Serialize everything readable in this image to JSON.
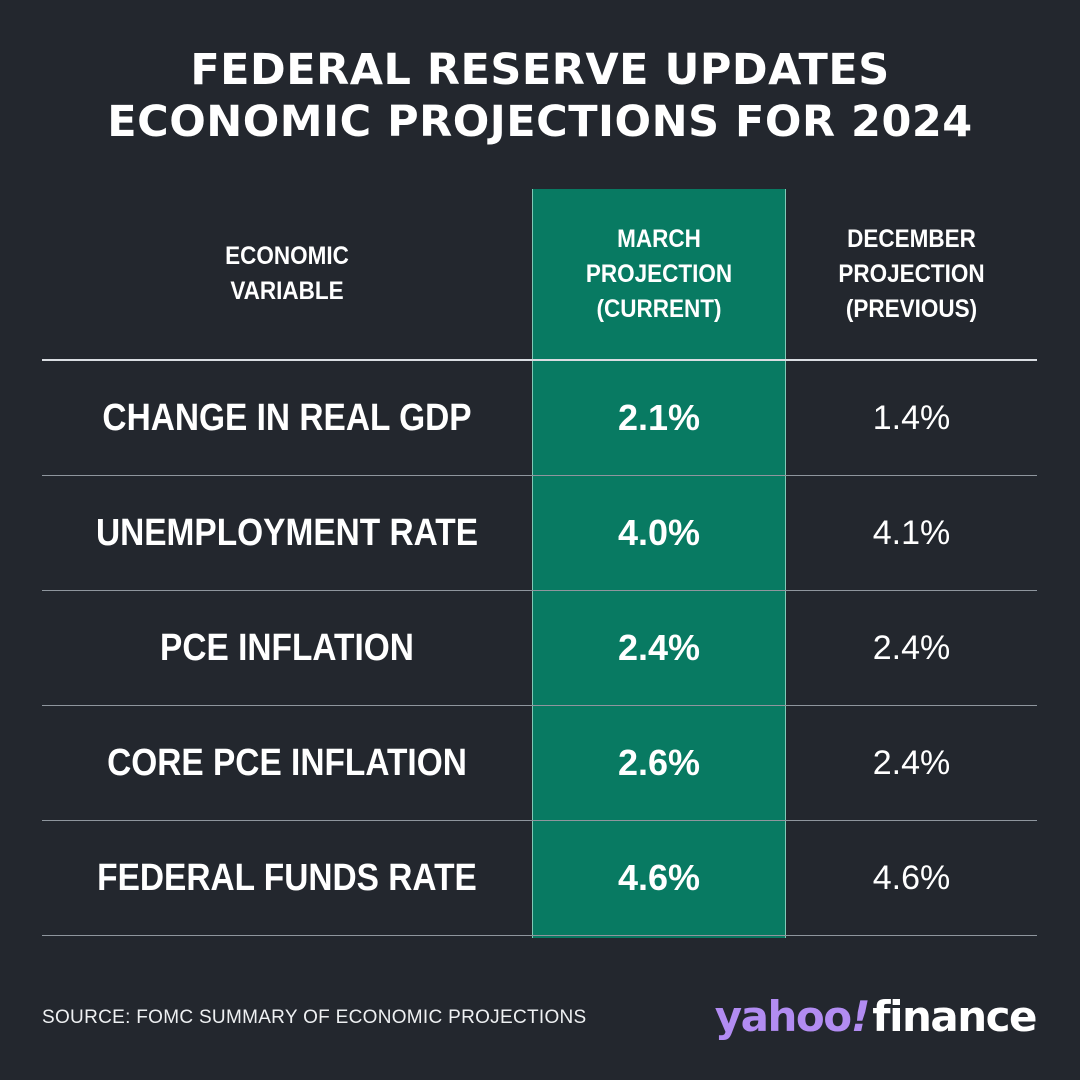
{
  "title": {
    "line1": "FEDERAL RESERVE UPDATES",
    "line2": "ECONOMIC PROJECTIONS FOR 2024"
  },
  "colors": {
    "background": "#23272e",
    "highlight": "#087a62",
    "text": "#ffffff",
    "logo_accent": "#b28cf2"
  },
  "chart_data": {
    "type": "table",
    "title": "FEDERAL RESERVE UPDATES ECONOMIC PROJECTIONS FOR 2024",
    "columns": [
      [
        "ECONOMIC",
        "VARIABLE"
      ],
      [
        "MARCH",
        "PROJECTION",
        "(CURRENT)"
      ],
      [
        "DECEMBER",
        "PROJECTION",
        "(PREVIOUS)"
      ]
    ],
    "rows": [
      {
        "variable": "CHANGE IN REAL GDP",
        "current": "2.1%",
        "previous": "1.4%"
      },
      {
        "variable": "UNEMPLOYMENT RATE",
        "current": "4.0%",
        "previous": "4.1%"
      },
      {
        "variable": "PCE INFLATION",
        "current": "2.4%",
        "previous": "2.4%"
      },
      {
        "variable": "CORE PCE INFLATION",
        "current": "2.6%",
        "previous": "2.4%"
      },
      {
        "variable": "FEDERAL FUNDS RATE",
        "current": "4.6%",
        "previous": "4.6%"
      }
    ],
    "highlighted_column": 1
  },
  "footer": {
    "source": "SOURCE: FOMC SUMMARY OF ECONOMIC PROJECTIONS",
    "logo_yahoo": "yahoo",
    "logo_bang": "!",
    "logo_finance": "finance"
  }
}
